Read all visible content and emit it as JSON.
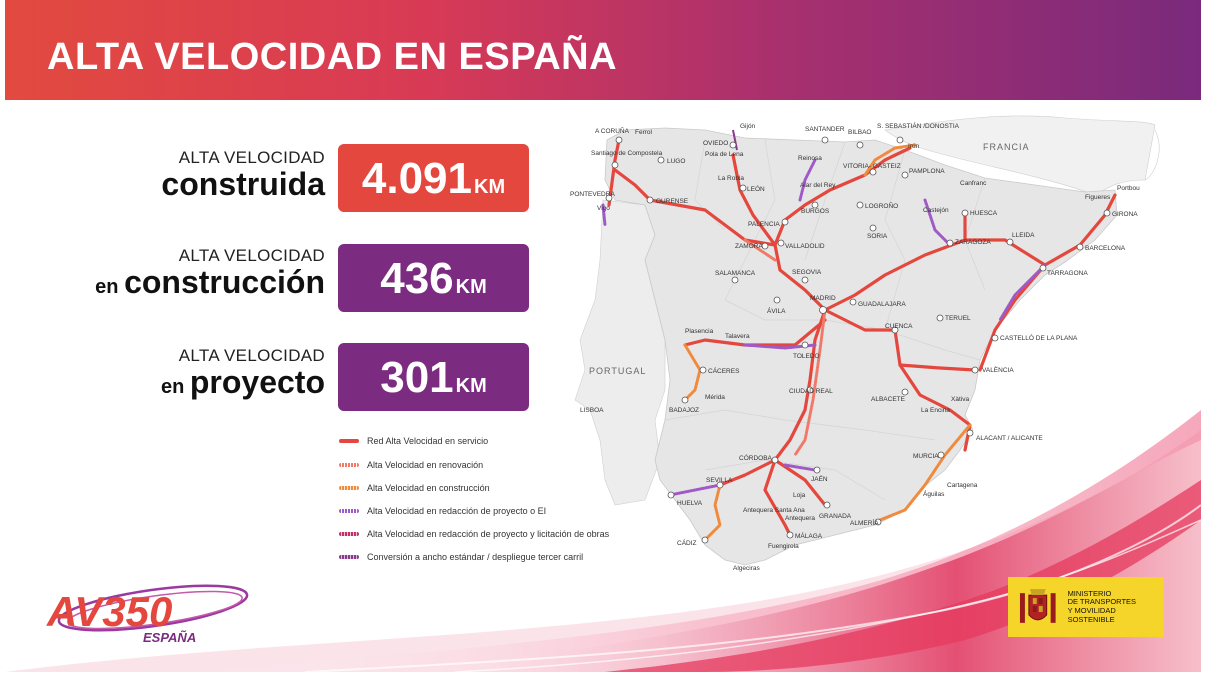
{
  "header": {
    "title": "ALTA VELOCIDAD EN ESPAÑA"
  },
  "stats": [
    {
      "label_small": "ALTA VELOCIDAD",
      "label_pre": "",
      "label_big": "construida",
      "value": "4.091",
      "unit": "KM",
      "color": "#e4473d"
    },
    {
      "label_small": "ALTA VELOCIDAD",
      "label_pre": "en ",
      "label_big": "construcción",
      "value": "436",
      "unit": "KM",
      "color": "#7b2b80"
    },
    {
      "label_small": "ALTA VELOCIDAD",
      "label_pre": "en ",
      "label_big": "proyecto",
      "value": "301",
      "unit": "KM",
      "color": "#7b2b80"
    }
  ],
  "legend": [
    {
      "label": "Red Alta Velocidad en servicio",
      "color": "#e4473d"
    },
    {
      "label": "Alta Velocidad en renovación",
      "color": "#f07a6a"
    },
    {
      "label": "Alta Velocidad en construcción",
      "color": "#f08a3c"
    },
    {
      "label": "Alta Velocidad en redacción de proyecto o EI",
      "color": "#a05ac8"
    },
    {
      "label": "Alta Velocidad en redacción de proyecto y licitación de obras",
      "color": "#c0306a"
    },
    {
      "label": "Conversión a ancho estándar / despliegue tercer carril",
      "color": "#8a3a8a"
    }
  ],
  "map": {
    "countries": {
      "portugal": "PORTUGAL",
      "francia": "FRANCIA"
    },
    "cities": {
      "acoruna": "A CORUÑA",
      "ferrol": "Ferrol",
      "santiago": "Santiago de Compostela",
      "pontevedra": "PONTEVEDRA",
      "vigo": "Vigo",
      "lugo": "LUGO",
      "ourense": "OURENSE",
      "oviedo": "OVIEDO",
      "gijon": "Gijón",
      "polalena": "Pola de Lena",
      "santander": "SANTANDER",
      "bilbao": "BILBAO",
      "sansebastian": "S. SEBASTIÁN /DONOSTIA",
      "irun": "Irún",
      "vitoria": "VITORIA- GASTEIZ",
      "reinosa": "Reinosa",
      "alar": "Alar del Rey",
      "burgos": "BURGOS",
      "larobla": "La Robla",
      "leon": "LEÓN",
      "palencia": "PALENCIA",
      "logrono": "LOGROÑO",
      "pamplona": "PAMPLONA",
      "castejon": "Castejón",
      "soria": "SORIA",
      "huesca": "HUESCA",
      "zaragoza": "ZARAGOZA",
      "lleida": "LLEIDA",
      "canfranc": "Canfranc",
      "portbou": "Portbou",
      "figueres": "Figueres",
      "girona": "GIRONA",
      "barcelona": "BARCELONA",
      "tarragona": "TARRAGONA",
      "zamora": "ZAMORA",
      "valladolid": "VALLADOLID",
      "salamanca": "SALAMANCA",
      "segovia": "SEGOVIA",
      "avila": "ÁVILA",
      "madrid": "MADRID",
      "guadalajara": "GUADALAJARA",
      "teruel": "TERUEL",
      "cuenca": "CUENCA",
      "castellon": "CASTELLÓ DE LA PLANA",
      "valencia": "VALÈNCIA",
      "plasencia": "Plasencia",
      "talavera": "Talavera",
      "toledo": "TOLEDO",
      "caceres": "CÁCERES",
      "merida": "Mérida",
      "badajoz": "BADAJOZ",
      "ciudadreal": "CIUDAD REAL",
      "albacete": "ALBACETE",
      "laencina": "La Encina",
      "xativa": "Xàtiva",
      "alicante": "ALACANT / ALICANTE",
      "murcia": "MURCIA",
      "cartagena": "Cartagena",
      "aguilas": "Águilas",
      "almeria": "ALMERÍA",
      "cordoba": "CÓRDOBA",
      "jaen": "JAÉN",
      "sevilla": "SEVILLA",
      "huelva": "HUELVA",
      "loja": "Loja",
      "antequera": "Antequera",
      "antequerasa": "Antequera Santa Ana",
      "granada": "GRANADA",
      "malaga": "MÁLAGA",
      "fuengirola": "Fuengirola",
      "cadiz": "CÁDIZ",
      "algeciras": "Algeciras",
      "lisboa": "LISBOA"
    }
  },
  "logo": {
    "main": "AV350",
    "sub": "ESPAÑA"
  },
  "ministry": {
    "text": "MINISTERIO\nDE TRANSPORTES\nY MOVILIDAD SOSTENIBLE"
  }
}
